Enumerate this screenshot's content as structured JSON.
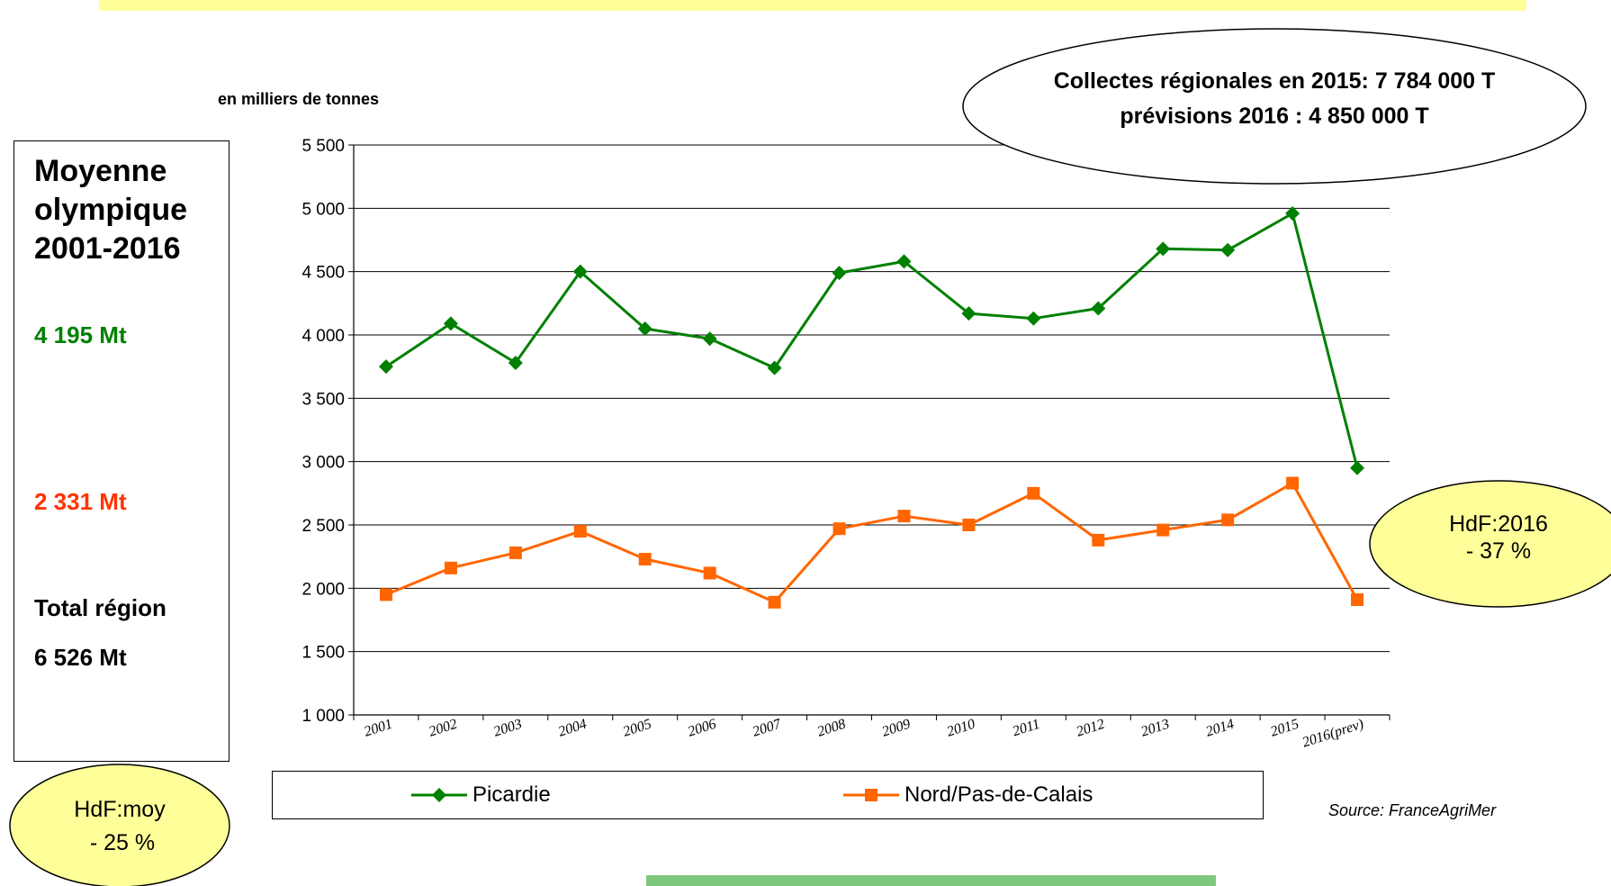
{
  "unit_label": "en milliers de tonnes",
  "stats": {
    "avg_title": "Moyenne olympique 2001-2016",
    "picardie_avg": "4 195 Mt",
    "npdc_avg": "2 331 Mt",
    "total_label": "Total région",
    "total_value": "6 526 Mt"
  },
  "callouts": {
    "collectes_line1": "Collectes régionales en 2015: 7 784 000 T",
    "collectes_line2": "prévisions 2016 : 4 850 000 T",
    "hdf2016_line1": "HdF:2016",
    "hdf2016_line2": "- 37 %",
    "hdfmoy_line1": "HdF:moy",
    "hdfmoy_line2": "- 25 %"
  },
  "source": "Source: FranceAgriMer",
  "colors": {
    "picardie": "#008000",
    "npdc": "#ff6600",
    "callout_fill": "#ffff99",
    "banner_top": "#ffff99",
    "banner_bottom": "#7ec87e",
    "npdc_text": "#ff3300"
  },
  "chart_data": {
    "type": "line",
    "categories": [
      "2001",
      "2002",
      "2003",
      "2004",
      "2005",
      "2006",
      "2007",
      "2008",
      "2009",
      "2010",
      "2011",
      "2012",
      "2013",
      "2014",
      "2015",
      "2016(prev)"
    ],
    "series": [
      {
        "name": "Picardie",
        "marker": "diamond",
        "values": [
          3750,
          4090,
          3780,
          4500,
          4050,
          3970,
          3740,
          4490,
          4580,
          4170,
          4130,
          4210,
          4680,
          4670,
          4960,
          2950
        ]
      },
      {
        "name": "Nord/Pas-de-Calais",
        "marker": "square",
        "values": [
          1950,
          2160,
          2280,
          2450,
          2230,
          2120,
          1890,
          2470,
          2570,
          2500,
          2750,
          2380,
          2460,
          2540,
          2830,
          1910
        ]
      }
    ],
    "ylim": [
      1000,
      5500
    ],
    "yticks": [
      1000,
      1500,
      2000,
      2500,
      3000,
      3500,
      4000,
      4500,
      5000,
      5500
    ],
    "ytick_labels": [
      "1 000",
      "1 500",
      "2 000",
      "2 500",
      "3 000",
      "3 500",
      "4 000",
      "4 500",
      "5 000",
      "5 500"
    ],
    "grid": true,
    "legend_position": "bottom",
    "ylabel": "en milliers de tonnes",
    "xlabel": "",
    "title": ""
  }
}
